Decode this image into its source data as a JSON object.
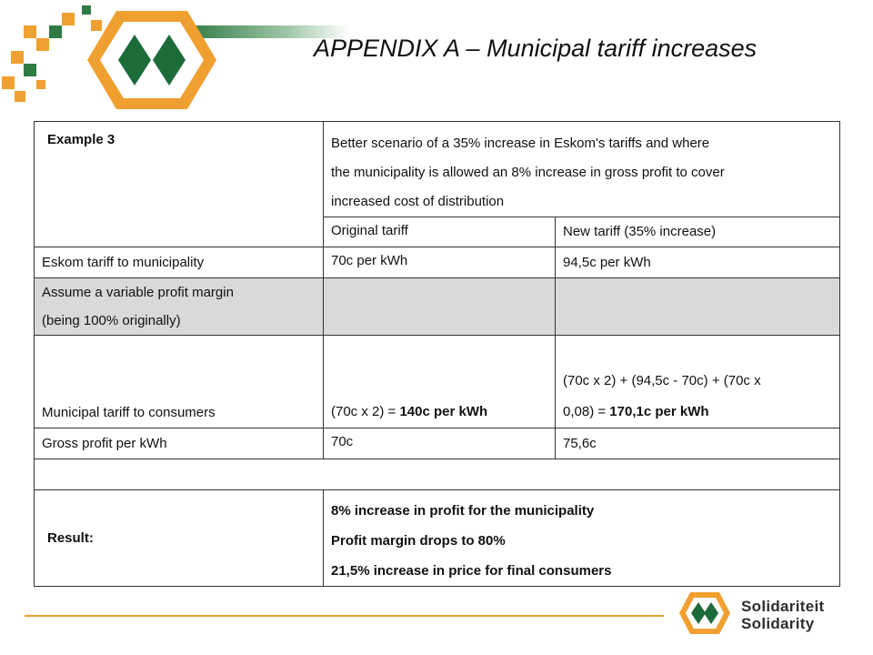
{
  "title": "APPENDIX A – Municipal  tariff increases",
  "table": {
    "example_label": "Example 3",
    "scenario_line1": "Better scenario of a 35% increase in Eskom's tariffs and where",
    "scenario_line2": "the municipality is allowed an 8% increase in gross profit to cover",
    "scenario_line3": "increased cost of distribution",
    "col_original": "Original tariff",
    "col_new": "New tariff (35% increase)",
    "rows": [
      {
        "label": "Eskom tariff to municipality",
        "original": "70c per kWh",
        "new": "94,5c per kWh"
      },
      {
        "label_line1": "Assume a variable profit margin",
        "label_line2": "(being 100% originally)",
        "original": "",
        "new": ""
      },
      {
        "label": "Municipal tariff to consumers",
        "original_prefix": "(70c x 2) = ",
        "original_bold": "140c per kWh",
        "new_line1": "(70c x 2) + (94,5c - 70c) + (70c x",
        "new_line2_prefix": "0,08) = ",
        "new_line2_bold": "170,1c per kWh"
      },
      {
        "label": "Gross profit per kWh",
        "original": "70c",
        "new": "75,6c"
      }
    ],
    "result_label": "Result:",
    "result_lines": [
      "8% increase in profit for the municipality",
      "Profit margin drops to 80%",
      "21,5% increase in price for final consumers"
    ]
  },
  "brand": {
    "line1": "Solidariteit",
    "line2": "Solidarity"
  },
  "colors": {
    "orange": "#f0a030",
    "green": "#1e6b3a",
    "shade": "#d9d9d9"
  }
}
